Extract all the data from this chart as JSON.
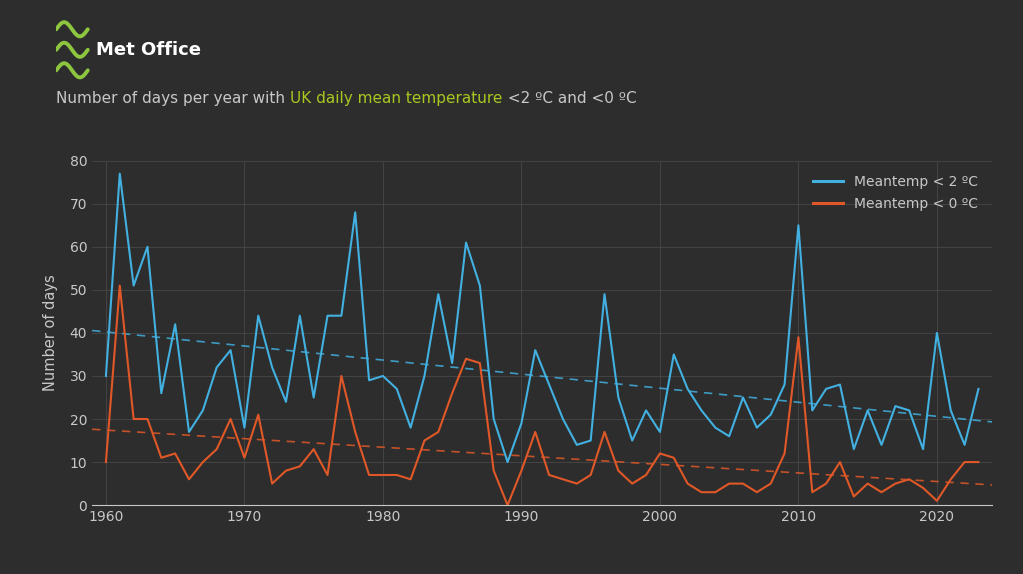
{
  "background_color": "#2d2d2d",
  "text_color": "#c8c8c8",
  "green_color": "#a8c820",
  "blue_color": "#42b0e0",
  "orange_color": "#e05828",
  "met_green": "#8dc63f",
  "years": [
    1960,
    1961,
    1962,
    1963,
    1964,
    1965,
    1966,
    1967,
    1968,
    1969,
    1970,
    1971,
    1972,
    1973,
    1974,
    1975,
    1976,
    1977,
    1978,
    1979,
    1980,
    1981,
    1982,
    1983,
    1984,
    1985,
    1986,
    1987,
    1988,
    1989,
    1990,
    1991,
    1992,
    1993,
    1994,
    1995,
    1996,
    1997,
    1998,
    1999,
    2000,
    2001,
    2002,
    2003,
    2004,
    2005,
    2006,
    2007,
    2008,
    2009,
    2010,
    2011,
    2012,
    2013,
    2014,
    2015,
    2016,
    2017,
    2018,
    2019,
    2020,
    2021,
    2022,
    2023
  ],
  "below2": [
    30,
    77,
    51,
    60,
    26,
    42,
    17,
    22,
    32,
    36,
    18,
    44,
    32,
    24,
    44,
    25,
    44,
    44,
    68,
    29,
    30,
    27,
    18,
    30,
    49,
    33,
    61,
    51,
    20,
    10,
    19,
    36,
    28,
    20,
    14,
    15,
    49,
    25,
    15,
    22,
    17,
    35,
    27,
    22,
    18,
    16,
    25,
    18,
    21,
    28,
    65,
    22,
    27,
    28,
    13,
    22,
    14,
    23,
    22,
    13,
    40,
    22,
    14,
    27
  ],
  "below0": [
    10,
    51,
    20,
    20,
    11,
    12,
    6,
    10,
    13,
    20,
    11,
    21,
    5,
    8,
    9,
    13,
    7,
    30,
    17,
    7,
    7,
    7,
    6,
    15,
    17,
    26,
    34,
    33,
    8,
    0,
    8,
    17,
    7,
    6,
    5,
    7,
    17,
    8,
    5,
    7,
    12,
    11,
    5,
    3,
    3,
    5,
    5,
    3,
    5,
    12,
    39,
    3,
    5,
    10,
    2,
    5,
    3,
    5,
    6,
    4,
    1,
    6,
    10,
    10
  ],
  "xlim": [
    1959,
    2024
  ],
  "ylim": [
    0,
    80
  ],
  "yticks": [
    0,
    10,
    20,
    30,
    40,
    50,
    60,
    70,
    80
  ],
  "xticks": [
    1960,
    1970,
    1980,
    1990,
    2000,
    2010,
    2020
  ],
  "grid_color": "#484848",
  "legend_label_2c": "Meantemp < 2 ºC",
  "legend_label_0c": "Meantemp < 0 ºC",
  "ylabel": "Number of days",
  "subtitle_part1": "Number of days per year with ",
  "subtitle_part2": "UK daily mean temperature",
  "subtitle_part3": " <2 ºC and <0 ºC",
  "met_office_text": "Met Office",
  "dpi": 100,
  "figsize": [
    10.23,
    5.74
  ]
}
